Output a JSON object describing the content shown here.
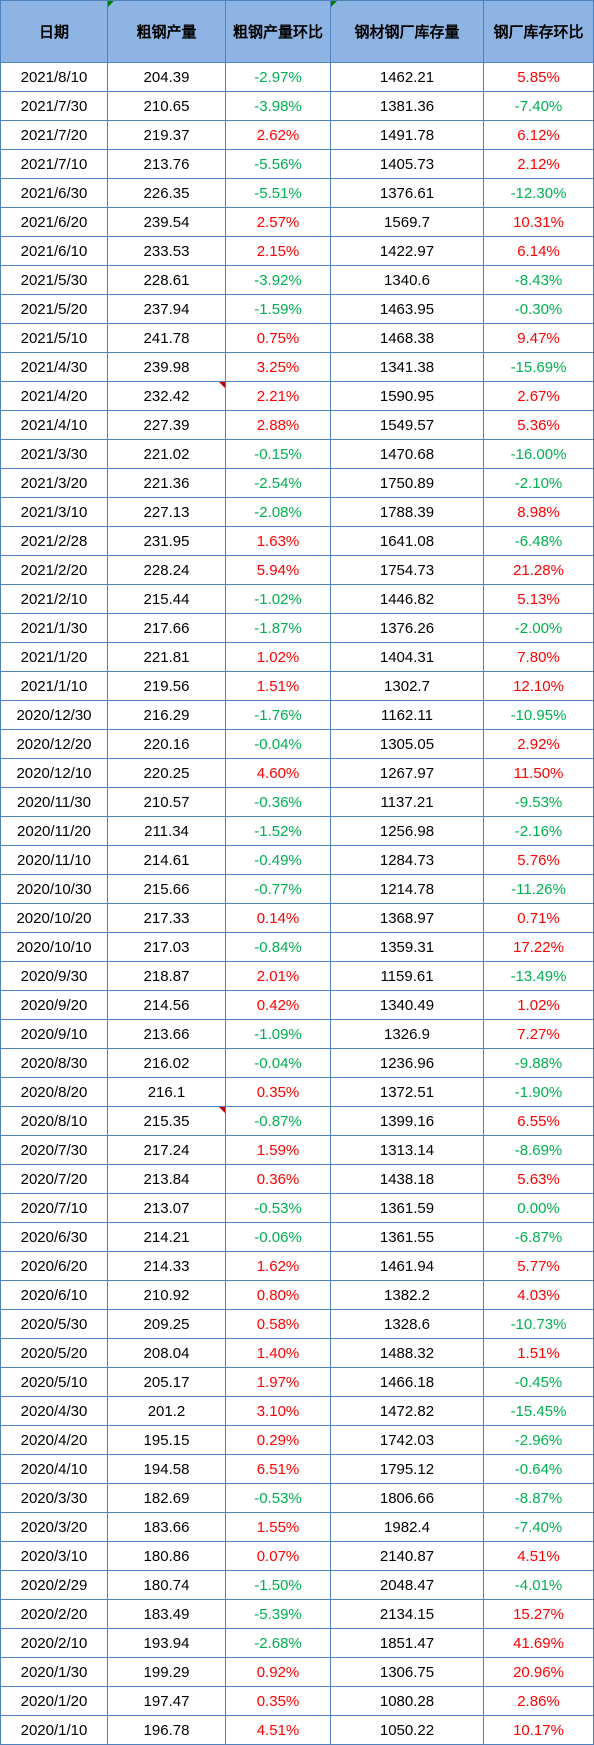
{
  "chart_data": {
    "type": "table",
    "columns": [
      "日期",
      "粗钢产量",
      "粗钢产量环比",
      "钢材钢厂库存量",
      "钢厂库存环比"
    ],
    "rows": [
      [
        "2021/8/10",
        204.39,
        "-2.97%",
        1462.21,
        "5.85%"
      ],
      [
        "2021/7/30",
        210.65,
        "-3.98%",
        1381.36,
        "-7.40%"
      ],
      [
        "2021/7/20",
        219.37,
        "2.62%",
        1491.78,
        "6.12%"
      ],
      [
        "2021/7/10",
        213.76,
        "-5.56%",
        1405.73,
        "2.12%"
      ],
      [
        "2021/6/30",
        226.35,
        "-5.51%",
        1376.61,
        "-12.30%"
      ],
      [
        "2021/6/20",
        239.54,
        "2.57%",
        1569.7,
        "10.31%"
      ],
      [
        "2021/6/10",
        233.53,
        "2.15%",
        1422.97,
        "6.14%"
      ],
      [
        "2021/5/30",
        228.61,
        "-3.92%",
        1340.6,
        "-8.43%"
      ],
      [
        "2021/5/20",
        237.94,
        "-1.59%",
        1463.95,
        "-0.30%"
      ],
      [
        "2021/5/10",
        241.78,
        "0.75%",
        1468.38,
        "9.47%"
      ],
      [
        "2021/4/30",
        239.98,
        "3.25%",
        1341.38,
        "-15.69%"
      ],
      [
        "2021/4/20",
        232.42,
        "2.21%",
        1590.95,
        "2.67%"
      ],
      [
        "2021/4/10",
        227.39,
        "2.88%",
        1549.57,
        "5.36%"
      ],
      [
        "2021/3/30",
        221.02,
        "-0.15%",
        1470.68,
        "-16.00%"
      ],
      [
        "2021/3/20",
        221.36,
        "-2.54%",
        1750.89,
        "-2.10%"
      ],
      [
        "2021/3/10",
        227.13,
        "-2.08%",
        1788.39,
        "8.98%"
      ],
      [
        "2021/2/28",
        231.95,
        "1.63%",
        1641.08,
        "-6.48%"
      ],
      [
        "2021/2/20",
        228.24,
        "5.94%",
        1754.73,
        "21.28%"
      ],
      [
        "2021/2/10",
        215.44,
        "-1.02%",
        1446.82,
        "5.13%"
      ],
      [
        "2021/1/30",
        217.66,
        "-1.87%",
        1376.26,
        "-2.00%"
      ],
      [
        "2021/1/20",
        221.81,
        "1.02%",
        1404.31,
        "7.80%"
      ],
      [
        "2021/1/10",
        219.56,
        "1.51%",
        1302.7,
        "12.10%"
      ],
      [
        "2020/12/30",
        216.29,
        "-1.76%",
        1162.11,
        "-10.95%"
      ],
      [
        "2020/12/20",
        220.16,
        "-0.04%",
        1305.05,
        "2.92%"
      ],
      [
        "2020/12/10",
        220.25,
        "4.60%",
        1267.97,
        "11.50%"
      ],
      [
        "2020/11/30",
        210.57,
        "-0.36%",
        1137.21,
        "-9.53%"
      ],
      [
        "2020/11/20",
        211.34,
        "-1.52%",
        1256.98,
        "-2.16%"
      ],
      [
        "2020/11/10",
        214.61,
        "-0.49%",
        1284.73,
        "5.76%"
      ],
      [
        "2020/10/30",
        215.66,
        "-0.77%",
        1214.78,
        "-11.26%"
      ],
      [
        "2020/10/20",
        217.33,
        "0.14%",
        1368.97,
        "0.71%"
      ],
      [
        "2020/10/10",
        217.03,
        "-0.84%",
        1359.31,
        "17.22%"
      ],
      [
        "2020/9/30",
        218.87,
        "2.01%",
        1159.61,
        "-13.49%"
      ],
      [
        "2020/9/20",
        214.56,
        "0.42%",
        1340.49,
        "1.02%"
      ],
      [
        "2020/9/10",
        213.66,
        "-1.09%",
        1326.9,
        "7.27%"
      ],
      [
        "2020/8/30",
        216.02,
        "-0.04%",
        1236.96,
        "-9.88%"
      ],
      [
        "2020/8/20",
        216.1,
        "0.35%",
        1372.51,
        "-1.90%"
      ],
      [
        "2020/8/10",
        215.35,
        "-0.87%",
        1399.16,
        "6.55%"
      ],
      [
        "2020/7/30",
        217.24,
        "1.59%",
        1313.14,
        "-8.69%"
      ],
      [
        "2020/7/20",
        213.84,
        "0.36%",
        1438.18,
        "5.63%"
      ],
      [
        "2020/7/10",
        213.07,
        "-0.53%",
        1361.59,
        "0.00%"
      ],
      [
        "2020/6/30",
        214.21,
        "-0.06%",
        1361.55,
        "-6.87%"
      ],
      [
        "2020/6/20",
        214.33,
        "1.62%",
        1461.94,
        "5.77%"
      ],
      [
        "2020/6/10",
        210.92,
        "0.80%",
        1382.2,
        "4.03%"
      ],
      [
        "2020/5/30",
        209.25,
        "0.58%",
        1328.6,
        "-10.73%"
      ],
      [
        "2020/5/20",
        208.04,
        "1.40%",
        1488.32,
        "1.51%"
      ],
      [
        "2020/5/10",
        205.17,
        "1.97%",
        1466.18,
        "-0.45%"
      ],
      [
        "2020/4/30",
        201.2,
        "3.10%",
        1472.82,
        "-15.45%"
      ],
      [
        "2020/4/20",
        195.15,
        "0.29%",
        1742.03,
        "-2.96%"
      ],
      [
        "2020/4/10",
        194.58,
        "6.51%",
        1795.12,
        "-0.64%"
      ],
      [
        "2020/3/30",
        182.69,
        "-0.53%",
        1806.66,
        "-8.87%"
      ],
      [
        "2020/3/20",
        183.66,
        "1.55%",
        1982.4,
        "-7.40%"
      ],
      [
        "2020/3/10",
        180.86,
        "0.07%",
        2140.87,
        "4.51%"
      ],
      [
        "2020/2/29",
        180.74,
        "-1.50%",
        2048.47,
        "-4.01%"
      ],
      [
        "2020/2/20",
        183.49,
        "-5.39%",
        2134.15,
        "15.27%"
      ],
      [
        "2020/2/10",
        193.94,
        "-2.68%",
        1851.47,
        "41.69%"
      ],
      [
        "2020/1/30",
        199.29,
        "0.92%",
        1306.75,
        "20.96%"
      ],
      [
        "2020/1/20",
        197.47,
        "0.35%",
        1080.28,
        "2.86%"
      ],
      [
        "2020/1/10",
        196.78,
        "4.51%",
        1050.22,
        "10.17%"
      ]
    ]
  },
  "colors": {
    "header_bg": "#8db4e2",
    "grid": "#4f81bd",
    "text": "#000000",
    "positive": "#ff0000",
    "non_positive": "#00b050"
  },
  "cell_markers": [
    {
      "date": "2021/4/20",
      "column": 1,
      "icon": "comment-indicator-icon",
      "color": "#c00000"
    },
    {
      "date": "2020/8/10",
      "column": 1,
      "icon": "comment-indicator-icon",
      "color": "#c00000"
    }
  ],
  "header_markers": [
    {
      "column": 1,
      "icon": "error-indicator-icon",
      "color": "#008000"
    },
    {
      "column": 3,
      "icon": "error-indicator-icon",
      "color": "#008000"
    }
  ]
}
